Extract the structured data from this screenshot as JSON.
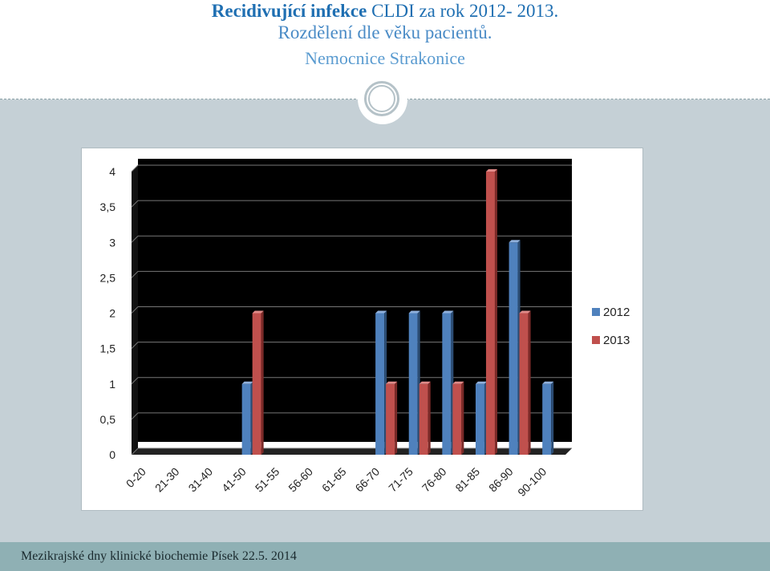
{
  "title": {
    "line1_bold": "Recidivující infekce",
    "line1_rest": " CLDI za rok 2012- 2013.",
    "line2": "Rozdělení dle věku pacientů.",
    "line3": "Nemocnice Strakonice"
  },
  "footer": {
    "text": "Mezikrajské dny klinické biochemie Písek 22.5. 2014"
  },
  "colors": {
    "series_2012": "#4f81bd",
    "series_2013": "#c0504d",
    "plot_bg": "#000000"
  },
  "chart_data": {
    "type": "bar",
    "title": "",
    "xlabel": "",
    "ylabel": "",
    "ylim": [
      0,
      4
    ],
    "ytick_labels": [
      "0",
      "0,5",
      "1",
      "1,5",
      "2",
      "2,5",
      "3",
      "3,5",
      "4"
    ],
    "categories": [
      "0-20",
      "21-30",
      "31-40",
      "41-50",
      "51-55",
      "56-60",
      "61-65",
      "66-70",
      "71-75",
      "76-80",
      "81-85",
      "86-90",
      "90-100"
    ],
    "series": [
      {
        "name": "2012",
        "values": [
          0,
          0,
          0,
          1,
          0,
          0,
          0,
          2,
          2,
          2,
          1,
          3,
          1
        ]
      },
      {
        "name": "2013",
        "values": [
          0,
          0,
          0,
          2,
          0,
          0,
          0,
          1,
          1,
          1,
          4,
          2,
          0
        ]
      }
    ],
    "legend_position": "right",
    "grid": true
  }
}
